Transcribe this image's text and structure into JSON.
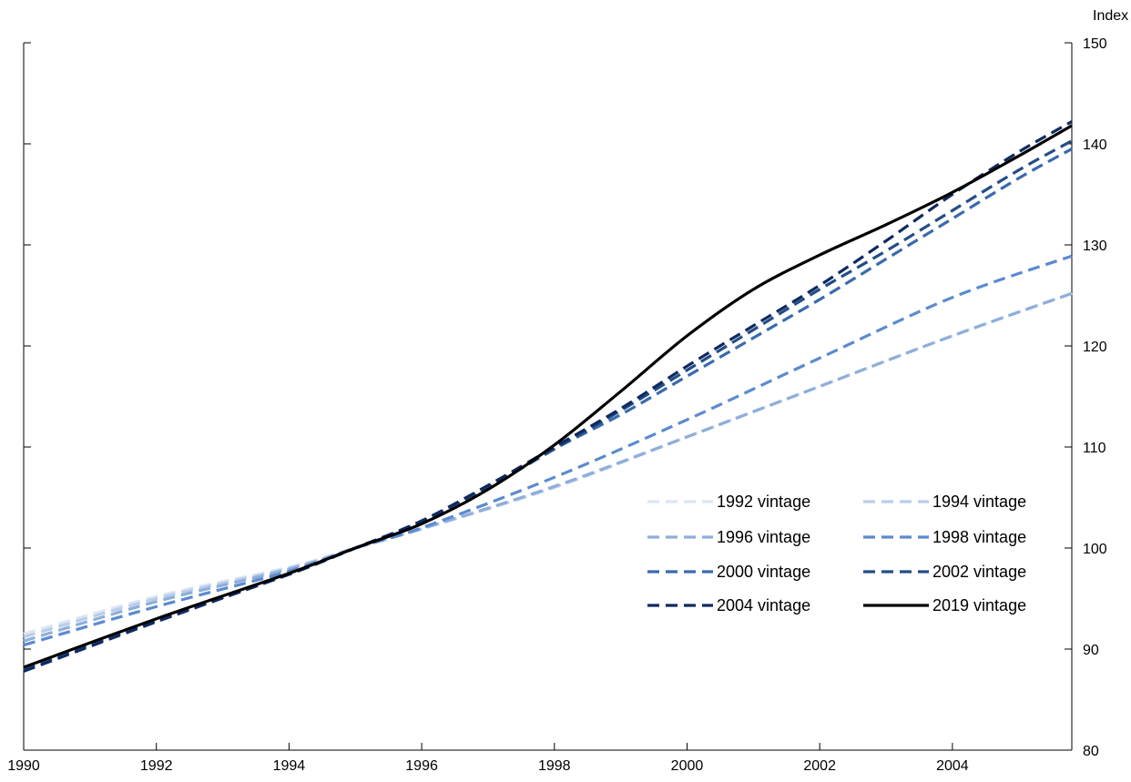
{
  "chart_data": {
    "type": "line",
    "y_unit_label": "Index",
    "xlim": [
      1990,
      2005.8
    ],
    "ylim": [
      80,
      150
    ],
    "x_ticks": [
      1990,
      1992,
      1994,
      1996,
      1998,
      2000,
      2002,
      2004
    ],
    "y_ticks": [
      80,
      90,
      100,
      110,
      120,
      130,
      140,
      150
    ],
    "y_axis_side": "right",
    "grid": false,
    "legend_placement": "lower-right, two columns",
    "series": [
      {
        "name": "1992 vintage",
        "color": "#dbe5f4",
        "style": "dashed",
        "x": [
          1990,
          1992,
          1994,
          1995,
          1996,
          1998,
          2000,
          2002,
          2004,
          2005.8
        ],
        "y": [
          91.5,
          95.2,
          98.1,
          100,
          101.9,
          106.0,
          111.0,
          116.0,
          121.0,
          125.2
        ]
      },
      {
        "name": "1994 vintage",
        "color": "#b9cde9",
        "style": "dashed",
        "x": [
          1990,
          1992,
          1994,
          1995,
          1996,
          1998,
          2000,
          2002,
          2004,
          2005.8
        ],
        "y": [
          91.2,
          95.0,
          98.0,
          100,
          101.9,
          106.0,
          111.0,
          116.0,
          121.0,
          125.2
        ]
      },
      {
        "name": "1996 vintage",
        "color": "#8eaedb",
        "style": "dashed",
        "x": [
          1990,
          1992,
          1994,
          1995,
          1996,
          1998,
          2000,
          2002,
          2004,
          2005.8
        ],
        "y": [
          90.8,
          94.7,
          97.9,
          100,
          101.9,
          106.1,
          111.0,
          116.0,
          121.0,
          125.2
        ]
      },
      {
        "name": "1998 vintage",
        "color": "#5b8ad0",
        "style": "dashed",
        "x": [
          1990,
          1992,
          1994,
          1995,
          1996,
          1998,
          2000,
          2002,
          2004,
          2005.8
        ],
        "y": [
          90.4,
          94.2,
          97.7,
          100,
          102.0,
          107.0,
          112.7,
          118.8,
          124.8,
          128.9
        ]
      },
      {
        "name": "2000 vintage",
        "color": "#3a6aad",
        "style": "dashed",
        "x": [
          1990,
          1992,
          1994,
          1995,
          1996,
          1997,
          1998,
          1999,
          2000,
          2001,
          2002,
          2003,
          2004,
          2005,
          2005.8
        ],
        "y": [
          88.0,
          92.8,
          97.4,
          100,
          102.6,
          106.0,
          109.8,
          113.2,
          117.0,
          120.8,
          124.6,
          128.6,
          132.6,
          136.6,
          139.5
        ]
      },
      {
        "name": "2002 vintage",
        "color": "#234d86",
        "style": "dashed",
        "x": [
          1990,
          1992,
          1994,
          1995,
          1996,
          1997,
          1998,
          1999,
          2000,
          2001,
          2002,
          2003,
          2004,
          2005,
          2005.8
        ],
        "y": [
          88.0,
          92.8,
          97.4,
          100,
          102.6,
          106.0,
          109.8,
          113.6,
          117.6,
          121.6,
          125.6,
          129.4,
          133.4,
          137.4,
          140.3
        ]
      },
      {
        "name": "2004 vintage",
        "color": "#0f2a61",
        "style": "dashed",
        "x": [
          1990,
          1992,
          1994,
          1995,
          1996,
          1997,
          1998,
          1999,
          2000,
          2001,
          2002,
          2003,
          2004,
          2005,
          2005.8
        ],
        "y": [
          87.8,
          92.7,
          97.4,
          100,
          102.7,
          106.2,
          110.0,
          113.8,
          118.0,
          122.0,
          126.0,
          130.4,
          135.0,
          139.2,
          142.2
        ]
      },
      {
        "name": "2019 vintage",
        "color": "#000000",
        "style": "solid",
        "x": [
          1990,
          1992,
          1994,
          1995,
          1996,
          1997,
          1998,
          1999,
          2000,
          2001,
          2002,
          2003,
          2004,
          2005,
          2005.8
        ],
        "y": [
          88.2,
          93.0,
          97.5,
          100,
          102.4,
          105.8,
          110.2,
          115.5,
          121.0,
          125.6,
          129.0,
          132.0,
          135.2,
          138.8,
          141.8
        ]
      }
    ]
  }
}
